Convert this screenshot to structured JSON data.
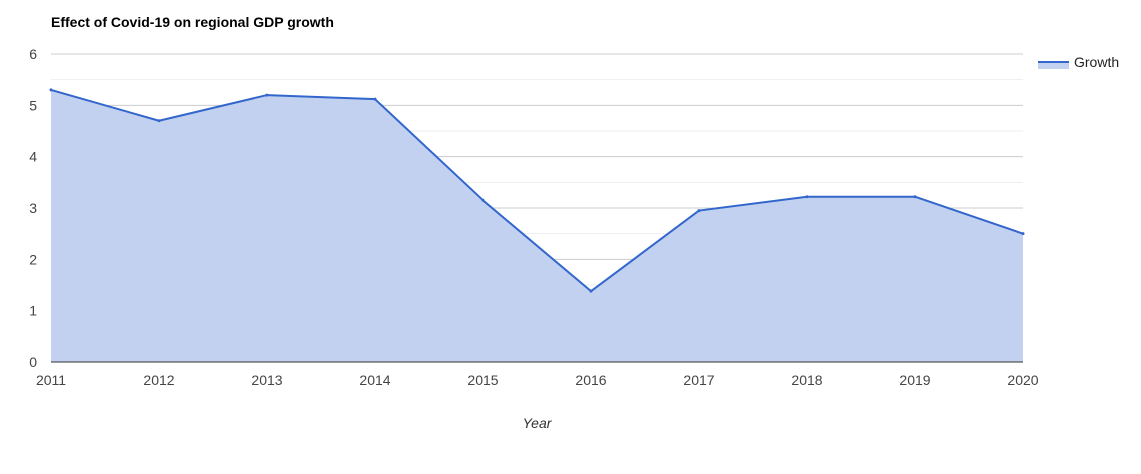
{
  "chart_data": {
    "type": "area",
    "title": "Effect of Covid-19 on regional GDP growth",
    "xlabel": "Year",
    "ylabel": "",
    "categories": [
      "2011",
      "2012",
      "2013",
      "2014",
      "2015",
      "2016",
      "2017",
      "2018",
      "2019",
      "2020"
    ],
    "series": [
      {
        "name": "Growth",
        "values": [
          5.3,
          4.7,
          5.2,
          5.12,
          3.15,
          1.38,
          2.95,
          3.22,
          3.22,
          2.5
        ],
        "line_color": "#3366cc",
        "fill_color": "#c2d1f0"
      }
    ],
    "ylim": [
      0,
      6
    ],
    "yticks": [
      "0",
      "1",
      "2",
      "3",
      "4",
      "5",
      "6"
    ],
    "grid": true,
    "minor_grid": true,
    "legend_position": "top-right",
    "colors": {
      "grid_major": "#cccccc",
      "grid_minor": "#eeeeee",
      "baseline": "#333333"
    }
  }
}
